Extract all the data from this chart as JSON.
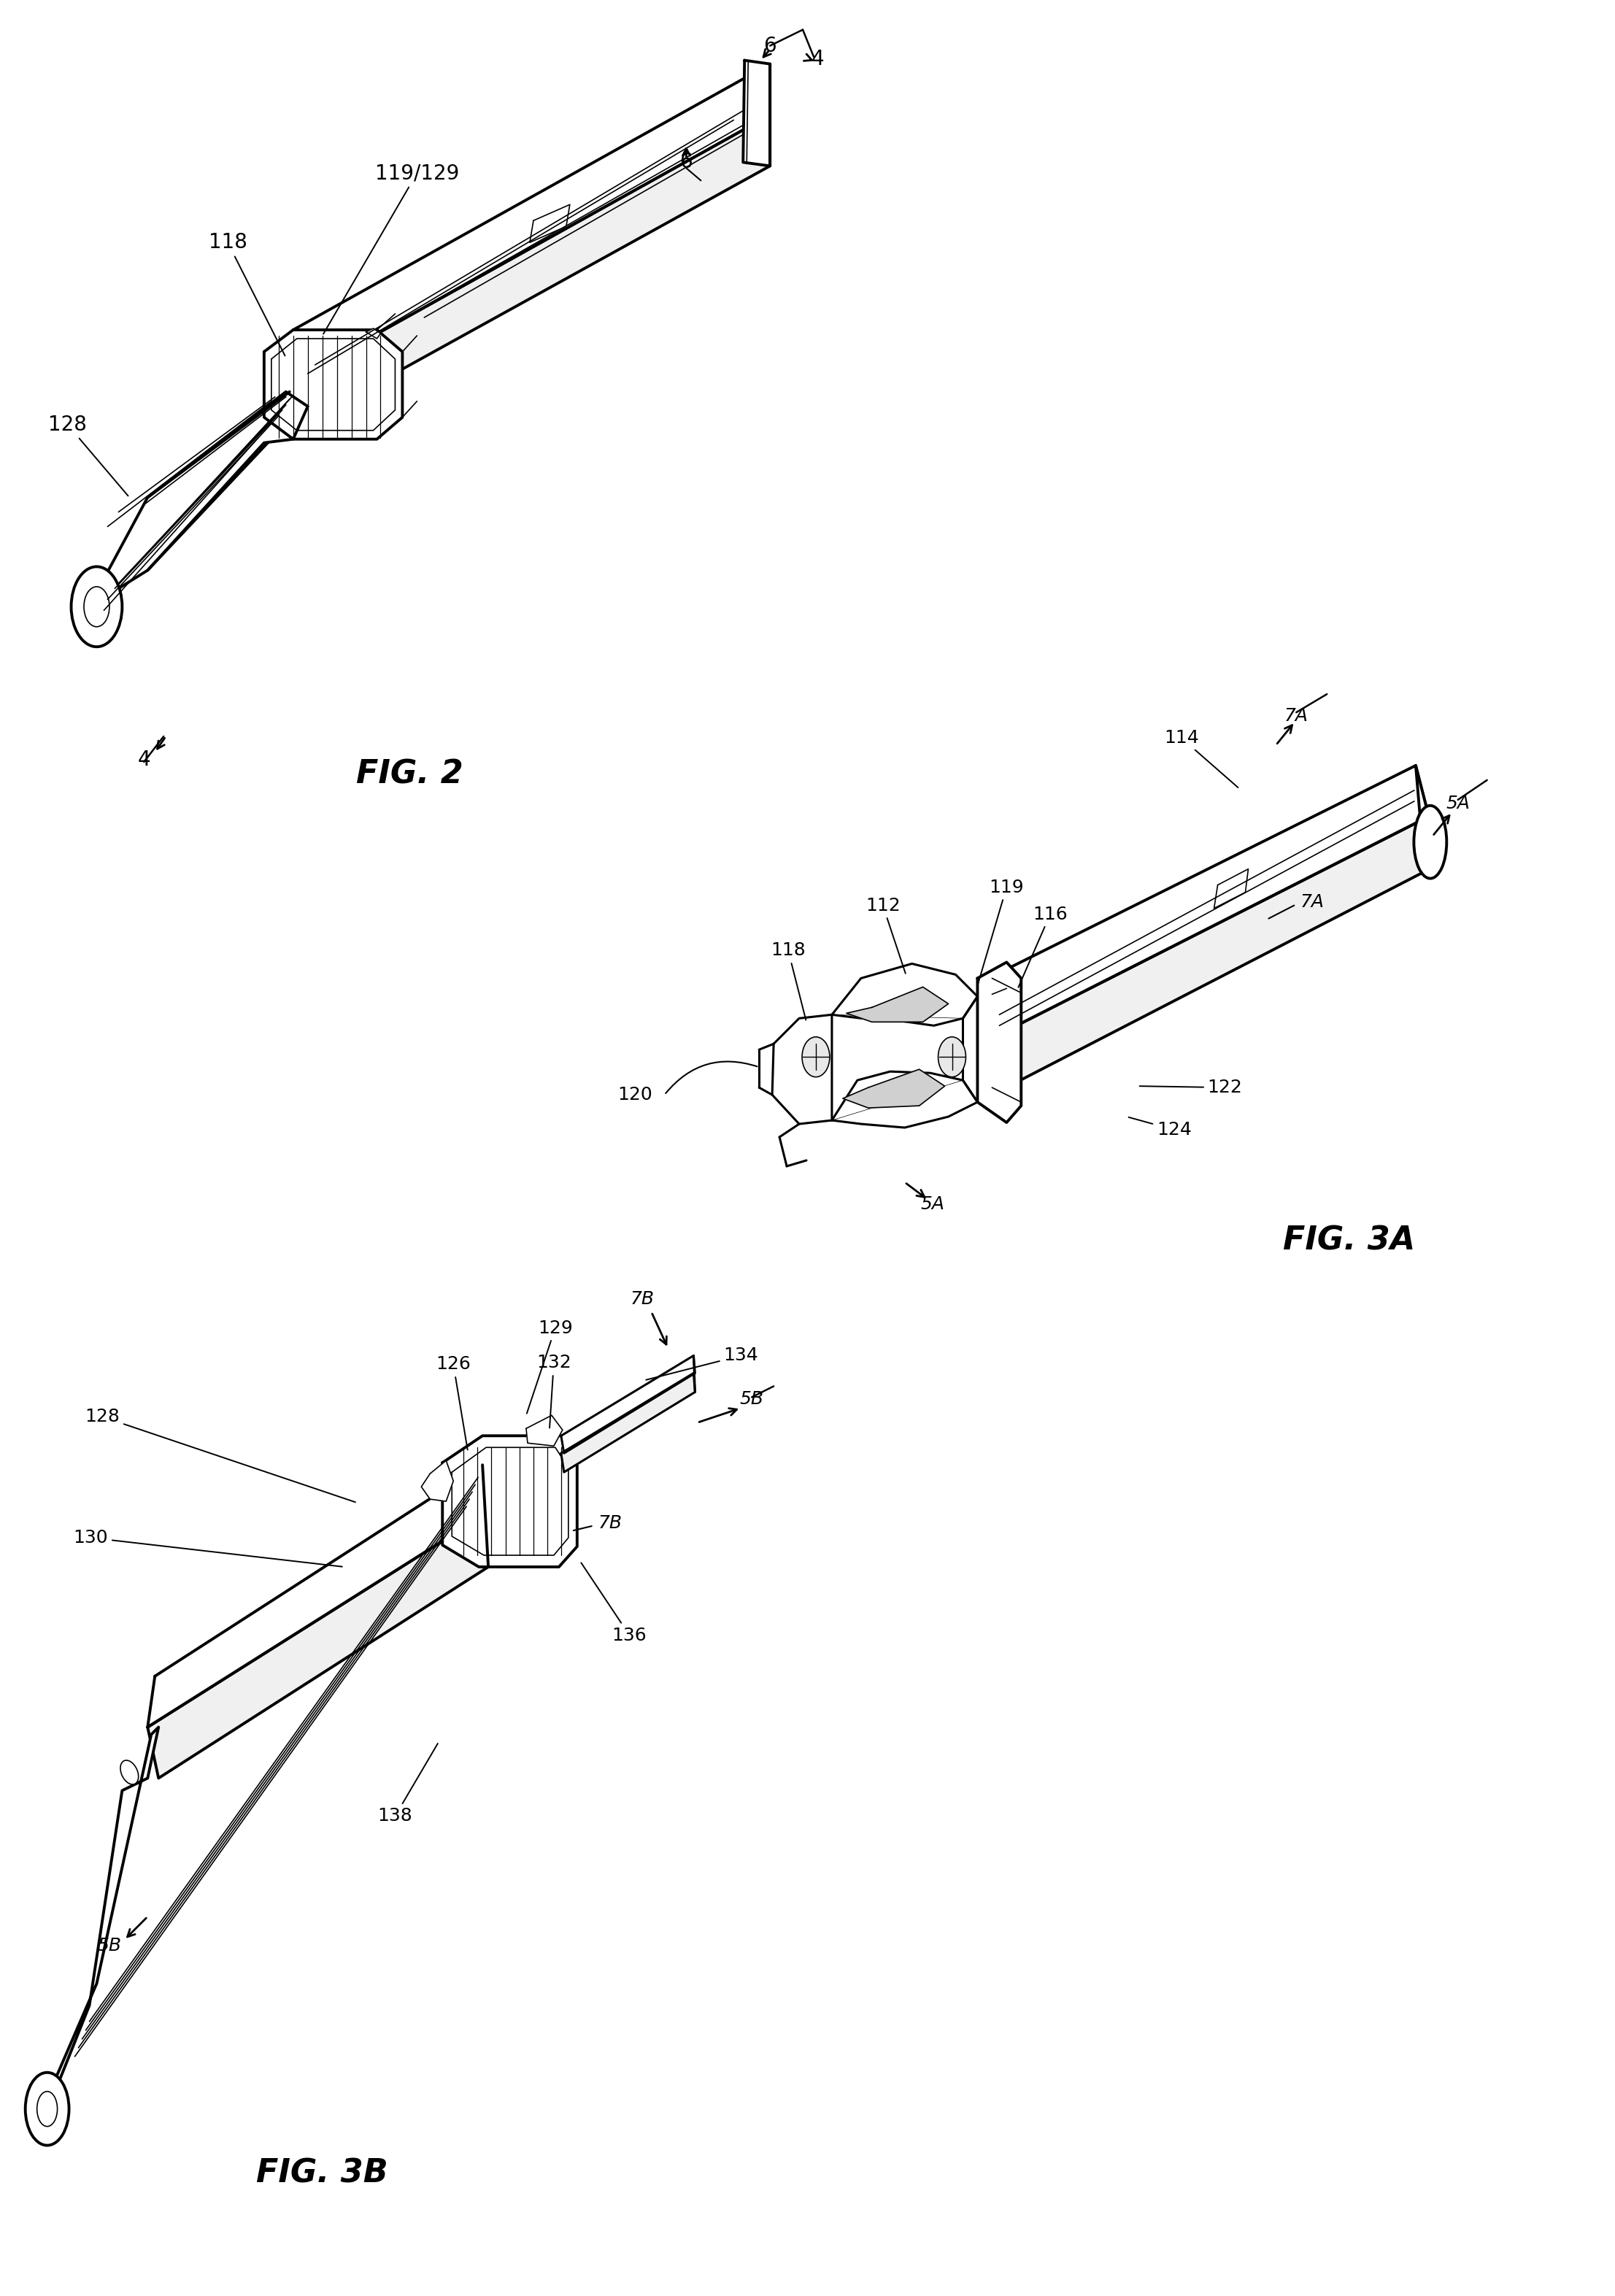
{
  "fig_width": 22.13,
  "fig_height": 31.46,
  "bg_color": "#ffffff",
  "lc": "#000000",
  "lw_main": 2.2,
  "lw_thin": 1.2,
  "lw_thick": 2.8,
  "fs_annot": 20,
  "fs_label": 32,
  "fig2_label": "FIG. 2",
  "fig3a_label": "FIG. 3A",
  "fig3b_label": "FIG. 3B"
}
